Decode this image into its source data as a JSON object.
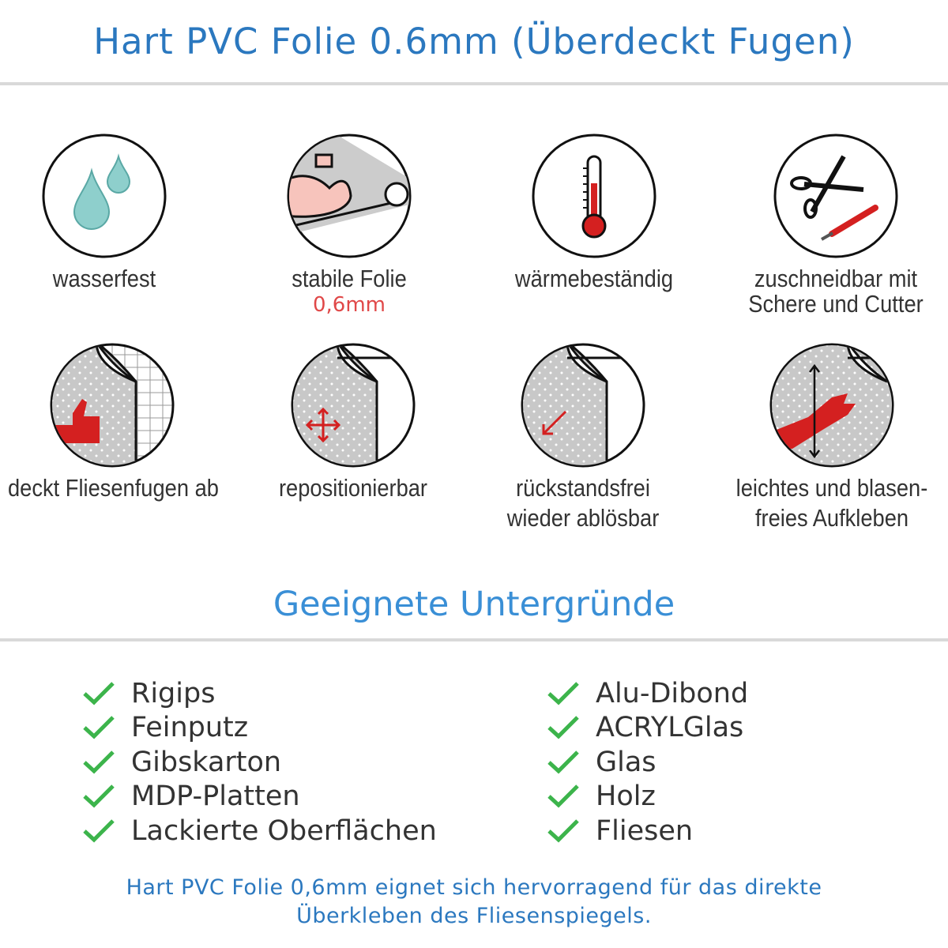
{
  "header": {
    "title": "Hart PVC Folie 0.6mm (Überdeckt Fugen)"
  },
  "features": [
    {
      "icon": "water-drops-icon",
      "label": "wasserfest"
    },
    {
      "icon": "strong-arm-icon",
      "label": "stabile Folie",
      "sub": "0,6mm"
    },
    {
      "icon": "thermometer-icon",
      "label": "wärmebeständig"
    },
    {
      "icon": "scissors-cutter-icon",
      "label": "zuschneidbar mit",
      "label2": "Schere und Cutter"
    },
    {
      "icon": "thumbs-up-tiles-icon",
      "label": "deckt Fliesenfugen ab"
    },
    {
      "icon": "move-arrows-icon",
      "label": "repositionierbar"
    },
    {
      "icon": "peel-arrow-icon",
      "label": "rückstandsfrei",
      "label2": "wieder ablösbar"
    },
    {
      "icon": "hand-smoothing-icon",
      "label": "leichtes und blasen-",
      "label2": "freies Aufkleben"
    }
  ],
  "surfaces": {
    "title": "Geeignete Untergründe",
    "left": [
      "Rigips",
      "Feinputz",
      "Gibskarton",
      "MDP-Platten",
      "Lackierte Oberflächen"
    ],
    "right": [
      "Alu-Dibond",
      "ACRYLGlas",
      "Glas",
      "Holz",
      "Fliesen"
    ]
  },
  "footer": {
    "line1": "Hart PVC Folie 0,6mm eignet sich hervorragend für das direkte",
    "line2": "Überkleben des Fliesenspiegels."
  },
  "colors": {
    "title": "#2b78bf",
    "section": "#3a8fd6",
    "check": "#3cb44b",
    "accent_red": "#d42020",
    "sub": "#e04848"
  }
}
